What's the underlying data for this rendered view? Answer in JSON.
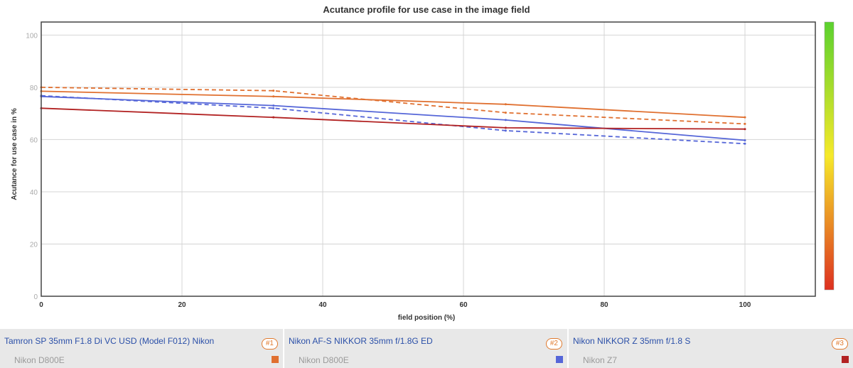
{
  "chart_data": {
    "type": "line",
    "title": "Acutance profile for use case in the image field",
    "xlabel": "field position (%)",
    "ylabel": "Acutance for use case in %",
    "xlim": [
      0,
      110
    ],
    "ylim": [
      0,
      105
    ],
    "xticks": [
      "0",
      "20",
      "40",
      "60",
      "80",
      "100"
    ],
    "yticks": [
      "0",
      "20",
      "40",
      "60",
      "80",
      "100"
    ],
    "grid": true,
    "colorbar": {
      "from": "#dd3020",
      "mid": "#f6e92a",
      "to": "#5bd12e"
    },
    "series": [
      {
        "color": "#e07030",
        "dashed": false,
        "x": [
          0,
          33,
          66,
          100
        ],
        "y": [
          78.5,
          76.5,
          73.5,
          68.5
        ]
      },
      {
        "color": "#e07030",
        "dashed": true,
        "x": [
          0,
          33,
          66,
          100
        ],
        "y": [
          80,
          78.7,
          70.3,
          66
        ]
      },
      {
        "color": "#5566d8",
        "dashed": false,
        "x": [
          0,
          33,
          66,
          100
        ],
        "y": [
          76.5,
          73,
          67.5,
          59.7
        ]
      },
      {
        "color": "#5566d8",
        "dashed": true,
        "x": [
          0,
          33,
          66,
          100
        ],
        "y": [
          76.8,
          72,
          63.4,
          58.4
        ]
      },
      {
        "color": "#b22222",
        "dashed": false,
        "x": [
          0,
          33,
          66,
          100
        ],
        "y": [
          72,
          68.5,
          64.5,
          64
        ]
      }
    ]
  },
  "legend": [
    {
      "name": "Tamron SP 35mm F1.8 Di VC USD (Model F012) Nikon",
      "camera": "Nikon D800E",
      "badge": "#1",
      "color": "#e07030"
    },
    {
      "name": "Nikon AF-S NIKKOR 35mm f/1.8G ED",
      "camera": "Nikon D800E",
      "badge": "#2",
      "color": "#5566d8"
    },
    {
      "name": "Nikon NIKKOR Z 35mm f/1.8 S",
      "camera": "Nikon Z7",
      "badge": "#3",
      "color": "#b22222"
    }
  ]
}
